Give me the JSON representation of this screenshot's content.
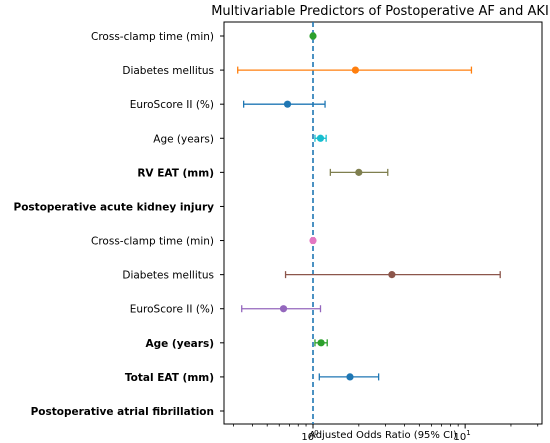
{
  "chart_data": {
    "type": "forest",
    "title": "Multivariable Predictors of Postoperative AF and AKI",
    "xlabel": "Adjusted Odds Ratio (95% CI)",
    "x_scale": "log",
    "xlim": [
      0.26,
      32
    ],
    "x_ticks": [
      {
        "value": 1,
        "label": "10",
        "sup": "0"
      },
      {
        "value": 10,
        "label": "10",
        "sup": "1"
      }
    ],
    "reference_line": 1,
    "rows": [
      {
        "label": "Cross-clamp time (min)",
        "bold": false,
        "or": 1.0,
        "lo": 0.98,
        "hi": 1.02,
        "color": "#2ca02c"
      },
      {
        "label": "Diabetes mellitus",
        "bold": false,
        "or": 1.9,
        "lo": 0.32,
        "hi": 11.0,
        "color": "#ff7f0e"
      },
      {
        "label": "EuroScore II (%)",
        "bold": false,
        "or": 0.68,
        "lo": 0.35,
        "hi": 1.2,
        "color": "#1f77b4"
      },
      {
        "label": "Age (years)",
        "bold": false,
        "or": 1.12,
        "lo": 1.03,
        "hi": 1.22,
        "color": "#17becf"
      },
      {
        "label": "RV EAT (mm)",
        "bold": true,
        "or": 2.0,
        "lo": 1.3,
        "hi": 3.1,
        "color": "#7f7f4f"
      },
      {
        "label": "Postoperative acute kidney injury",
        "bold": true,
        "or": null,
        "lo": null,
        "hi": null,
        "color": null
      },
      {
        "label": "Cross-clamp time (min)",
        "bold": false,
        "or": 1.0,
        "lo": 0.98,
        "hi": 1.02,
        "color": "#e377c2"
      },
      {
        "label": "Diabetes mellitus",
        "bold": false,
        "or": 3.3,
        "lo": 0.66,
        "hi": 17.0,
        "color": "#8c564b"
      },
      {
        "label": "EuroScore II (%)",
        "bold": false,
        "or": 0.64,
        "lo": 0.34,
        "hi": 1.12,
        "color": "#9467bd"
      },
      {
        "label": "Age (years)",
        "bold": true,
        "or": 1.13,
        "lo": 1.03,
        "hi": 1.24,
        "color": "#2ca02c"
      },
      {
        "label": "Total EAT (mm)",
        "bold": true,
        "or": 1.75,
        "lo": 1.1,
        "hi": 2.7,
        "color": "#1f77b4"
      },
      {
        "label": "Postoperative atrial fibrillation",
        "bold": true,
        "or": null,
        "lo": null,
        "hi": null,
        "color": null
      }
    ],
    "grid": false,
    "reference_line_color": "#1f77b4"
  }
}
